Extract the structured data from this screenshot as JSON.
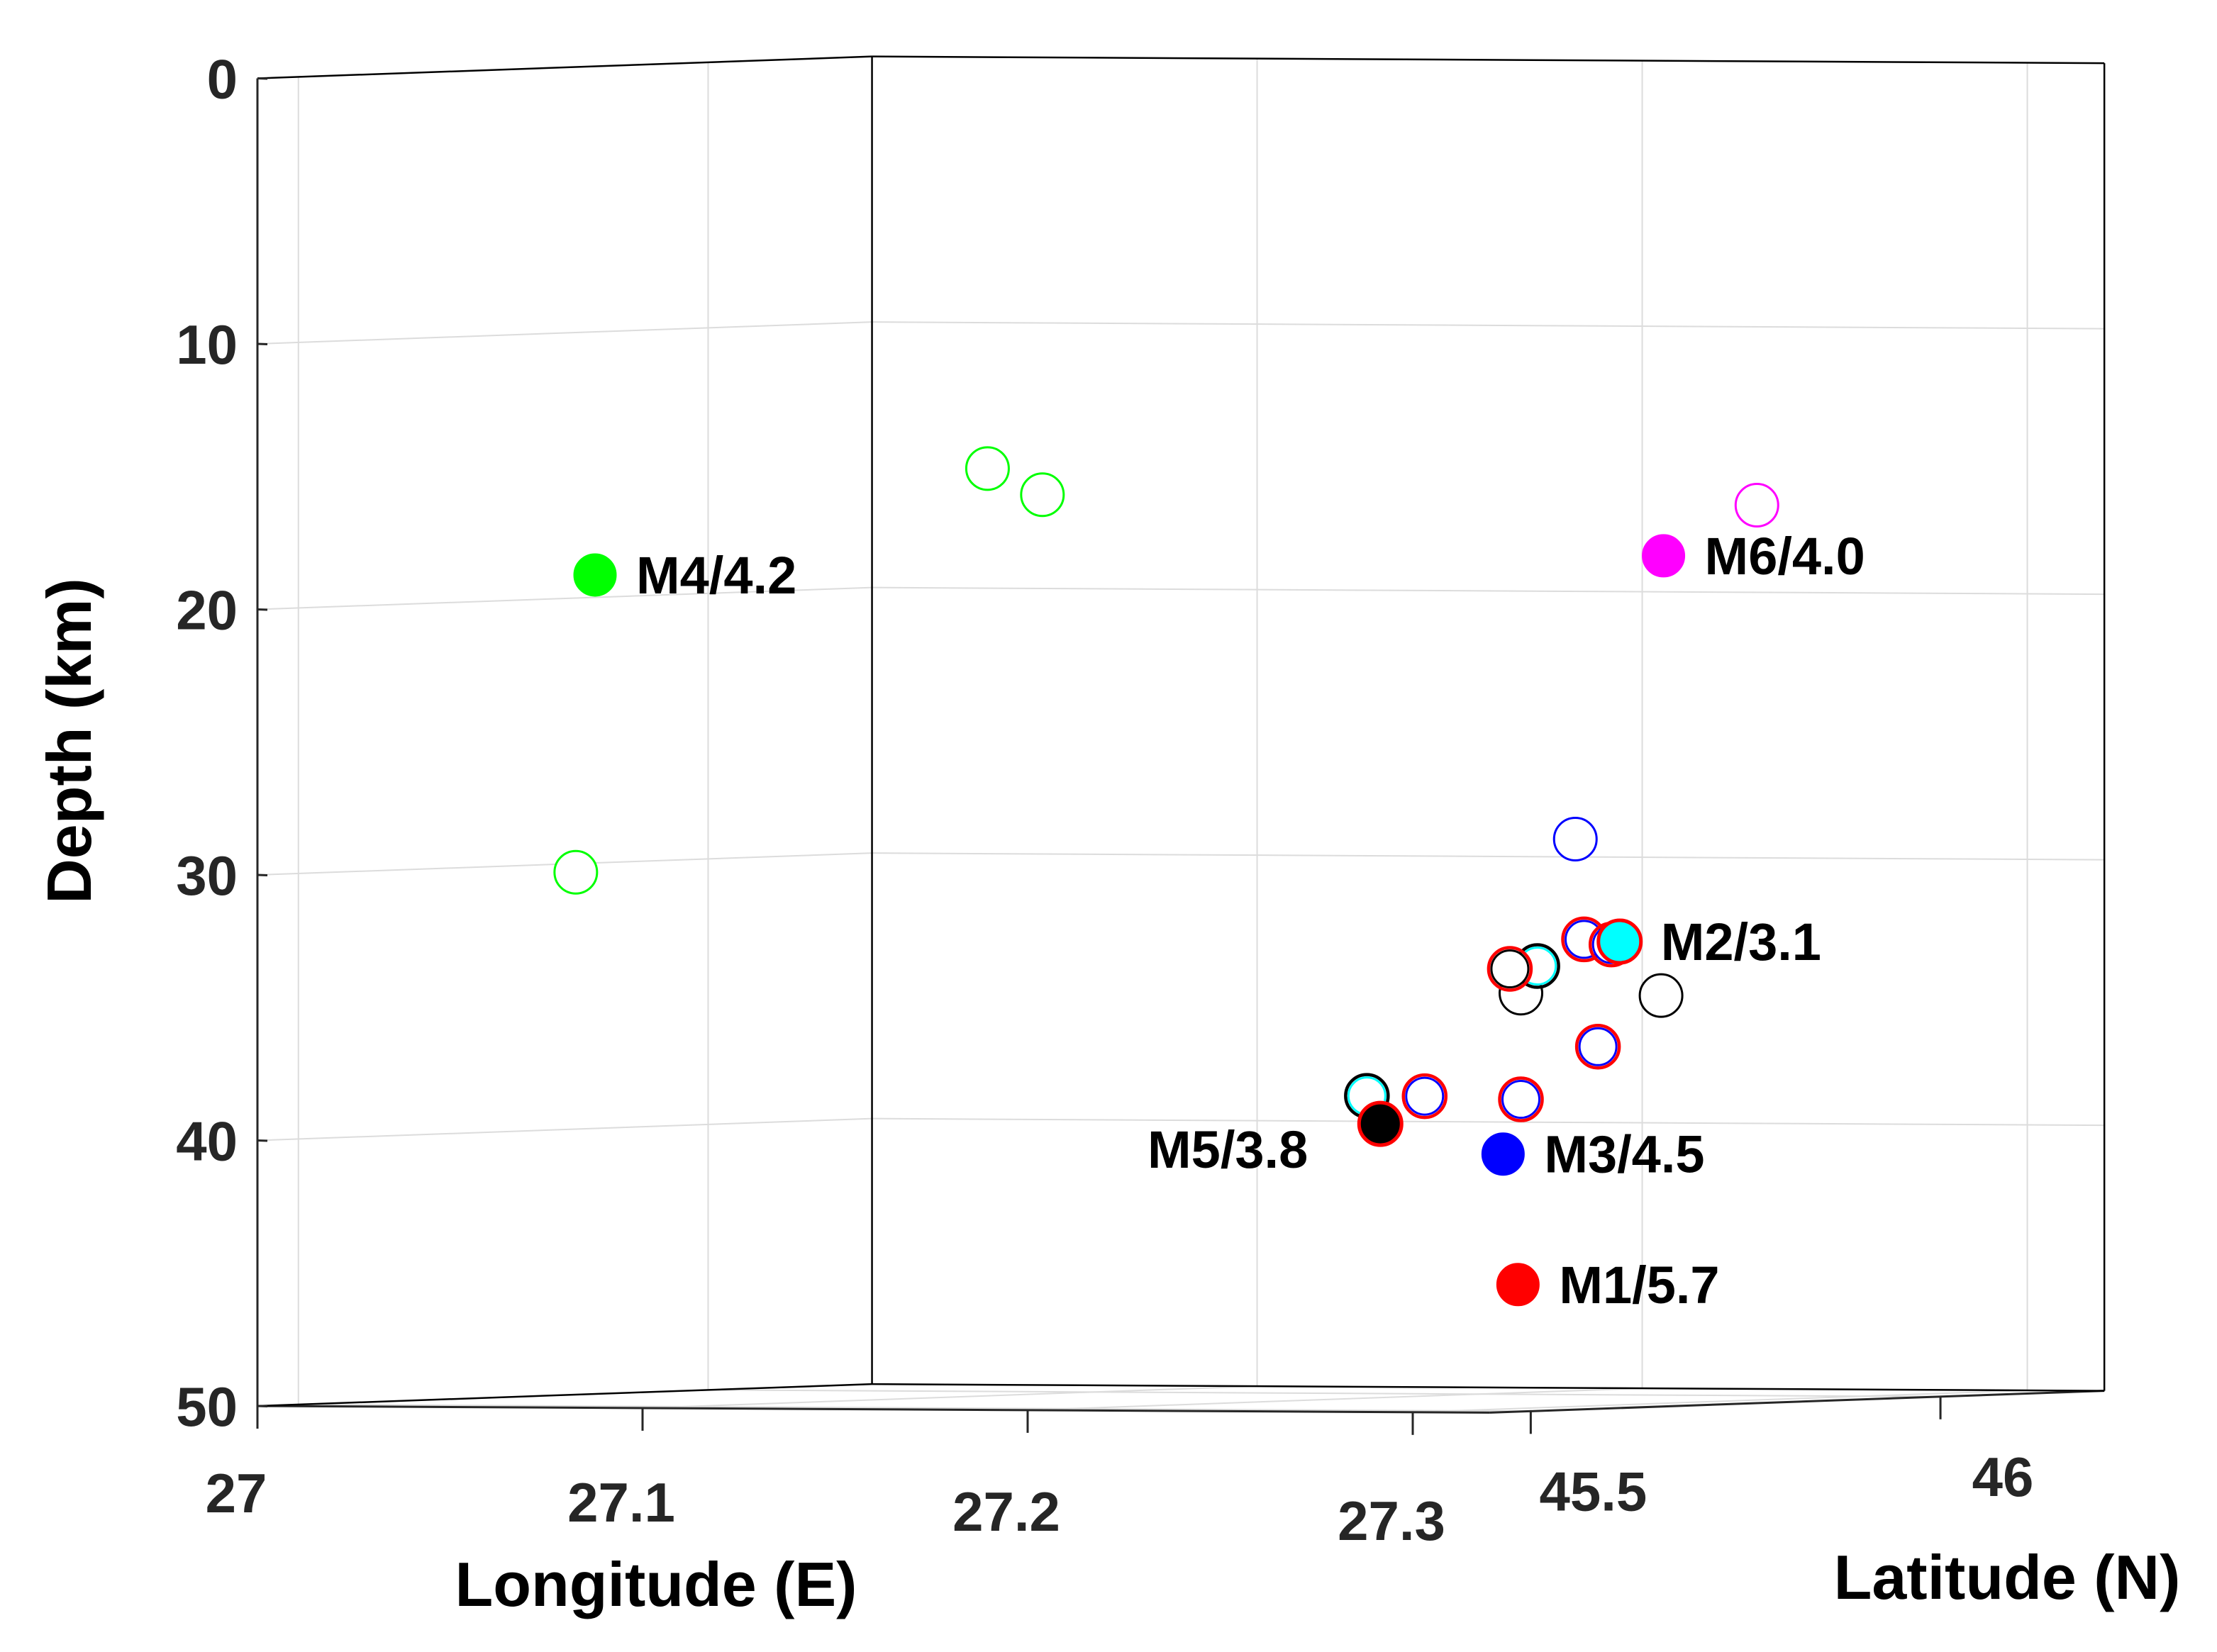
{
  "chart_data": {
    "type": "scatter",
    "title": "",
    "xlabel": "Longitude (E)",
    "ylabel": "Latitude (N)",
    "zlabel": "Depth (km)",
    "xlim": [
      27,
      27.32
    ],
    "ylim": [
      45.45,
      46.2
    ],
    "zlim": [
      0,
      50
    ],
    "z_direction": "reversed",
    "grid": true,
    "x_ticks": [
      "27",
      "27.1",
      "27.2",
      "27.3"
    ],
    "y_ticks": [
      "45.5",
      "46"
    ],
    "z_ticks": [
      "0",
      "10",
      "20",
      "30",
      "40",
      "50"
    ],
    "events": [
      {
        "label": "M1/5.7",
        "color": "#ff0000",
        "longitude": 27.272,
        "latitude": 45.71,
        "depth": 45.5
      },
      {
        "label": "M2/3.1",
        "color": "#00ffff",
        "edge": "#ff0000",
        "longitude": 27.275,
        "latitude": 45.82,
        "depth": 32.7
      },
      {
        "label": "M3/4.5",
        "color": "#0000ff",
        "longitude": 27.266,
        "latitude": 45.72,
        "depth": 40.6
      },
      {
        "label": "M4/4.2",
        "color": "#00ff00",
        "longitude": 27.06,
        "latitude": 45.58,
        "depth": 18.8
      },
      {
        "label": "M5/3.8",
        "color": "#000000",
        "edge": "#ff0000",
        "longitude": 27.232,
        "latitude": 45.73,
        "depth": 39.5
      },
      {
        "label": "M6/4.0",
        "color": "#ff00ff",
        "longitude": 27.28,
        "latitude": 45.85,
        "depth": 18.2
      }
    ],
    "aftershocks": [
      {
        "color": "#00ff00",
        "longitude": 27.13,
        "latitude": 45.73,
        "depth": 14.9
      },
      {
        "color": "#00ff00",
        "longitude": 27.14,
        "latitude": 45.75,
        "depth": 15.9
      },
      {
        "color": "#00ff00",
        "longitude": 27.055,
        "latitude": 45.58,
        "depth": 30.0
      },
      {
        "color": "#ff00ff",
        "longitude": 27.3,
        "latitude": 45.87,
        "depth": 16.3
      },
      {
        "color": "#0000ff",
        "longitude": 27.272,
        "latitude": 45.78,
        "depth": 28.8
      },
      {
        "color": "#0000ff",
        "edge": "#ff0000",
        "longitude": 27.27,
        "latitude": 45.8,
        "depth": 32.6
      },
      {
        "color": "#0000ff",
        "edge": "#ff0000",
        "longitude": 27.275,
        "latitude": 45.81,
        "depth": 32.8
      },
      {
        "color": "#000000",
        "longitude": 27.26,
        "latitude": 45.77,
        "depth": 34.6
      },
      {
        "color": "#00ffff",
        "edge": "#000000",
        "longitude": 27.26,
        "latitude": 45.79,
        "depth": 33.6
      },
      {
        "color": "#000000",
        "edge": "#ff0000",
        "longitude": 27.255,
        "latitude": 45.78,
        "depth": 33.7
      },
      {
        "color": "#000000",
        "longitude": 27.29,
        "latitude": 45.8,
        "depth": 34.7
      },
      {
        "color": "#0000ff",
        "edge": "#ff0000",
        "longitude": 27.28,
        "latitude": 45.77,
        "depth": 36.6
      },
      {
        "color": "#00ffff",
        "edge": "#000000",
        "longitude": 27.22,
        "latitude": 45.77,
        "depth": 38.5
      },
      {
        "color": "#0000ff",
        "edge": "#ff0000",
        "longitude": 27.235,
        "latitude": 45.77,
        "depth": 38.5
      },
      {
        "color": "#0000ff",
        "edge": "#ff0000",
        "longitude": 27.26,
        "latitude": 45.77,
        "depth": 38.6
      }
    ]
  }
}
